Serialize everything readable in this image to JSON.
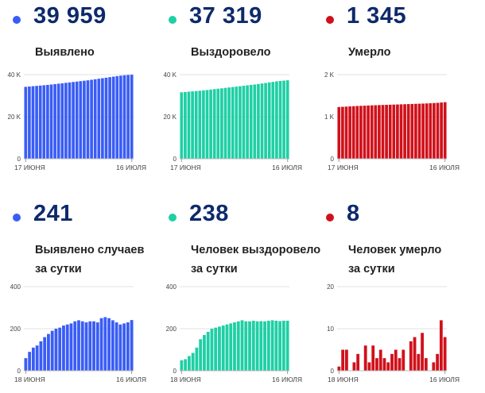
{
  "panels": [
    {
      "value": "39 959",
      "label_lines": [
        "Выявлено"
      ],
      "color": "#3a5df5"
    },
    {
      "value": "37 319",
      "label_lines": [
        "Выздоровело"
      ],
      "color": "#1fcfa5"
    },
    {
      "value": "1 345",
      "label_lines": [
        "Умерло"
      ],
      "color": "#d0111b"
    },
    {
      "value": "241",
      "label_lines": [
        "Выявлено случаев",
        "за сутки"
      ],
      "color": "#3a5df5"
    },
    {
      "value": "238",
      "label_lines": [
        "Человек выздоровело",
        "за сутки"
      ],
      "color": "#1fcfa5"
    },
    {
      "value": "8",
      "label_lines": [
        "Человек умерло",
        "за сутки"
      ],
      "color": "#d0111b"
    }
  ],
  "chart_data": [
    {
      "type": "bar",
      "title": "Выявлено",
      "x_start": "17 июня",
      "x_end": "16 июля",
      "yticks": [
        "0",
        "20 K",
        "40 K"
      ],
      "ylim": [
        0,
        40000
      ],
      "values": [
        34200,
        34350,
        34500,
        34650,
        34800,
        34950,
        35100,
        35300,
        35500,
        35700,
        35900,
        36100,
        36300,
        36500,
        36700,
        36900,
        37100,
        37300,
        37550,
        37800,
        38050,
        38300,
        38550,
        38800,
        39050,
        39300,
        39500,
        39700,
        39850,
        39959
      ]
    },
    {
      "type": "bar",
      "title": "Выздоровело",
      "x_start": "17 июня",
      "x_end": "16 июля",
      "yticks": [
        "0",
        "20 K",
        "40 K"
      ],
      "ylim": [
        0,
        40000
      ],
      "values": [
        31600,
        31750,
        31900,
        32050,
        32200,
        32350,
        32500,
        32700,
        32900,
        33100,
        33300,
        33500,
        33700,
        33900,
        34100,
        34300,
        34500,
        34700,
        34900,
        35100,
        35300,
        35550,
        35800,
        36050,
        36300,
        36550,
        36800,
        37000,
        37150,
        37319
      ]
    },
    {
      "type": "bar",
      "title": "Умерло",
      "x_start": "17 июня",
      "x_end": "16 июля",
      "yticks": [
        "0",
        "1 K",
        "2 K"
      ],
      "ylim": [
        0,
        2000
      ],
      "values": [
        1230,
        1235,
        1240,
        1245,
        1250,
        1255,
        1258,
        1262,
        1266,
        1270,
        1273,
        1276,
        1279,
        1282,
        1285,
        1288,
        1291,
        1294,
        1297,
        1300,
        1303,
        1306,
        1309,
        1312,
        1316,
        1320,
        1325,
        1330,
        1337,
        1345
      ]
    },
    {
      "type": "bar",
      "title": "Выявлено случаев за сутки",
      "x_start": "18 июня",
      "x_end": "16 июля",
      "yticks": [
        "0",
        "200",
        "400"
      ],
      "ylim": [
        0,
        400
      ],
      "values": [
        60,
        90,
        110,
        120,
        140,
        160,
        175,
        190,
        200,
        205,
        215,
        220,
        225,
        235,
        240,
        235,
        230,
        235,
        235,
        230,
        250,
        255,
        250,
        240,
        230,
        220,
        225,
        230,
        241
      ]
    },
    {
      "type": "bar",
      "title": "Человек выздоровело за сутки",
      "x_start": "18 июня",
      "x_end": "16 июля",
      "yticks": [
        "0",
        "200",
        "400"
      ],
      "ylim": [
        0,
        400
      ],
      "values": [
        50,
        55,
        70,
        85,
        110,
        150,
        170,
        185,
        200,
        205,
        210,
        215,
        220,
        225,
        230,
        235,
        240,
        235,
        235,
        238,
        235,
        236,
        235,
        238,
        240,
        238,
        236,
        238,
        238
      ]
    },
    {
      "type": "bar",
      "title": "Человек умерло за сутки",
      "x_start": "18 июня",
      "x_end": "16 июля",
      "yticks": [
        "0",
        "10",
        "20"
      ],
      "ylim": [
        0,
        20
      ],
      "values": [
        1,
        5,
        5,
        0,
        2,
        4,
        0,
        6,
        2,
        6,
        3,
        5,
        3,
        2,
        4,
        5,
        3,
        5,
        0,
        7,
        8,
        4,
        9,
        3,
        0,
        2,
        4,
        12,
        8
      ]
    }
  ]
}
